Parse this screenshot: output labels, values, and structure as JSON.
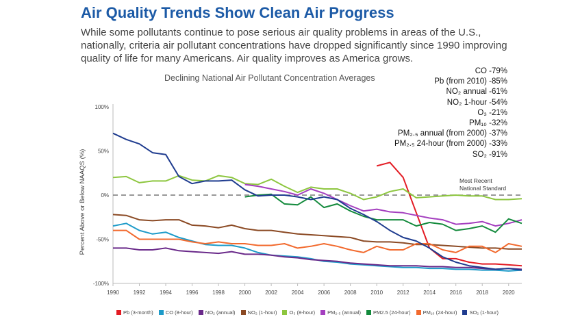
{
  "header": {
    "title": "Air Quality Trends Show Clean Air Progress",
    "subtitle": "While some pollutants continue to pose serious air quality problems in areas of the U.S., nationally, criteria air pollutant concentrations have dropped significantly since 1990 improving quality of life for many Americans. Air quality improves as America grows."
  },
  "callouts": [
    "CO -79%",
    "Pb (from 2010) -85%",
    "NO₂ annual -61%",
    "NO₂ 1-hour -54%",
    "O₃ -21%",
    "PM₁₀ -32%",
    "PM₂.₅ annual (from 2000) -37%",
    "PM₂.₅ 24-hour (from 2000) -33%",
    "SO₂ -91%"
  ],
  "chart_data": {
    "type": "line",
    "title": "Declining National Air Pollutant Concentration Averages",
    "ylabel": "Percent Above or Below NAAQS (%)",
    "xlabel": "",
    "xlim": [
      1990,
      2021
    ],
    "ylim": [
      -100,
      100
    ],
    "x_ticks": [
      "1990",
      "1992",
      "1994",
      "1996",
      "1998",
      "2000",
      "2002",
      "2004",
      "2006",
      "2008",
      "2010",
      "2012",
      "2014",
      "2016",
      "2018",
      "2020"
    ],
    "y_ticks": [
      "100%",
      "50%",
      "0%",
      "-50%",
      "-100%"
    ],
    "reference_line": {
      "value": 0,
      "label_line1": "Most Recent",
      "label_line2": "National Standard",
      "style": "dashed"
    },
    "legend_position": "bottom",
    "series": [
      {
        "name": "Pb (3-month)",
        "color": "#e31b23",
        "start": 2010,
        "values": [
          33,
          37,
          20,
          -20,
          -60,
          -72,
          -72,
          -76,
          -78,
          -78,
          -79,
          -80
        ]
      },
      {
        "name": "CO (8-hour)",
        "color": "#1e9bc9",
        "start": 1990,
        "values": [
          -35,
          -32,
          -40,
          -44,
          -42,
          -48,
          -52,
          -56,
          -57,
          -57,
          -60,
          -65,
          -68,
          -69,
          -70,
          -72,
          -75,
          -76,
          -78,
          -79,
          -80,
          -81,
          -82,
          -82,
          -83,
          -83,
          -84,
          -84,
          -85,
          -85,
          -86,
          -85
        ]
      },
      {
        "name": "NO₂ (annual)",
        "color": "#6a2a8a",
        "start": 1990,
        "values": [
          -60,
          -60,
          -62,
          -62,
          -60,
          -63,
          -64,
          -65,
          -66,
          -64,
          -67,
          -67,
          -68,
          -70,
          -71,
          -73,
          -74,
          -75,
          -77,
          -78,
          -79,
          -80,
          -80,
          -80,
          -81,
          -81,
          -82,
          -82,
          -83,
          -84,
          -83,
          -84
        ]
      },
      {
        "name": "NO₂ (1-hour)",
        "color": "#8b4a24",
        "start": 1990,
        "values": [
          -22,
          -23,
          -28,
          -29,
          -28,
          -28,
          -34,
          -35,
          -37,
          -34,
          -38,
          -40,
          -40,
          -42,
          -44,
          -45,
          -46,
          -47,
          -48,
          -52,
          -53,
          -53,
          -54,
          -56,
          -56,
          -57,
          -58,
          -59,
          -60,
          -60,
          -61,
          -61
        ]
      },
      {
        "name": "O₃ (8-hour)",
        "color": "#8dc63f",
        "start": 1990,
        "values": [
          20,
          21,
          14,
          16,
          16,
          22,
          17,
          16,
          22,
          20,
          13,
          12,
          18,
          10,
          3,
          9,
          7,
          7,
          2,
          -5,
          -2,
          4,
          7,
          -3,
          -2,
          -1,
          0,
          -1,
          -1,
          -5,
          -5,
          -4
        ]
      },
      {
        "name": "PM₂.₅ (annual)",
        "color": "#a43fbf",
        "start": 2000,
        "values": [
          12,
          10,
          7,
          4,
          0,
          7,
          2,
          -5,
          -12,
          -18,
          -16,
          -19,
          -20,
          -23,
          -26,
          -28,
          -33,
          -32,
          -30,
          -35,
          -32,
          -28
        ]
      },
      {
        "name": "PM2.5 (24-hour)",
        "color": "#138a3c",
        "start": 2000,
        "values": [
          -2,
          0,
          1,
          -10,
          -11,
          -2,
          -14,
          -10,
          -18,
          -24,
          -28,
          -28,
          -28,
          -35,
          -31,
          -33,
          -40,
          -38,
          -35,
          -42,
          -27,
          -32
        ]
      },
      {
        "name": "PM₁₀ (24-hour)",
        "color": "#f26a2e",
        "start": 1990,
        "values": [
          -40,
          -40,
          -50,
          -50,
          -50,
          -50,
          -53,
          -55,
          -53,
          -55,
          -55,
          -57,
          -57,
          -55,
          -60,
          -58,
          -55,
          -58,
          -62,
          -65,
          -58,
          -62,
          -62,
          -55,
          -55,
          -62,
          -65,
          -58,
          -58,
          -65,
          -55,
          -58
        ]
      },
      {
        "name": "SO₂ (1-hour)",
        "color": "#1f3c8f",
        "start": 1990,
        "values": [
          70,
          63,
          58,
          48,
          46,
          21,
          13,
          16,
          16,
          17,
          6,
          -1,
          0,
          0,
          -2,
          -5,
          -2,
          -5,
          -15,
          -22,
          -30,
          -40,
          -48,
          -52,
          -60,
          -70,
          -76,
          -80,
          -82,
          -84,
          -83,
          -85
        ]
      }
    ]
  }
}
